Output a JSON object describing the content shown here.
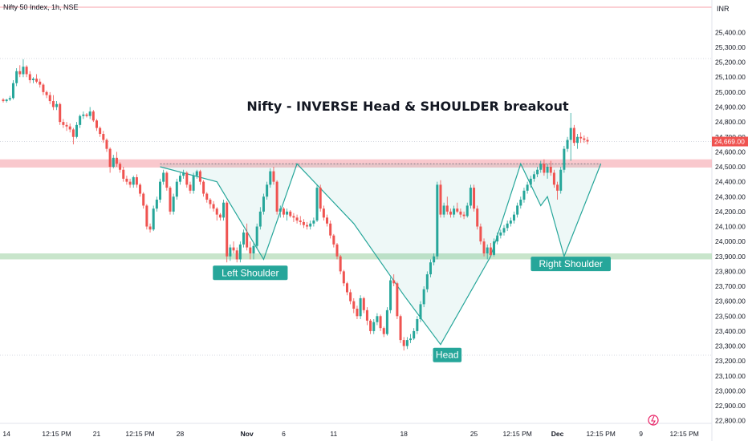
{
  "chart_data": {
    "type": "candlestick",
    "header": "Nifty 50 Index, 1h, NSE",
    "currency": "INR",
    "title": "Nifty - INVERSE Head & SHOULDER breakout",
    "last_price": 24669,
    "last_price_label": "24,669.00",
    "ylim": [
      22750,
      25520
    ],
    "y_ticks": [
      22800,
      22900,
      23000,
      23100,
      23200,
      23300,
      23400,
      23500,
      23600,
      23700,
      23800,
      23900,
      24000,
      24100,
      24200,
      24300,
      24400,
      24500,
      24600,
      24700,
      24800,
      24900,
      25000,
      25100,
      25200,
      25300,
      25400
    ],
    "y_tick_labels": [
      "22,800.00",
      "22,900.00",
      "23,000.00",
      "23,100.00",
      "23,200.00",
      "23,300.00",
      "23,400.00",
      "23,500.00",
      "23,600.00",
      "23,700.00",
      "23,800.00",
      "23,900.00",
      "24,000.00",
      "24,100.00",
      "24,200.00",
      "24,300.00",
      "24,400.00",
      "24,500.00",
      "24,600.00",
      "24,700.00",
      "24,800.00",
      "24,900.00",
      "25,000.00",
      "25,100.00",
      "25,200.00",
      "25,300.00",
      "25,400.00"
    ],
    "x_ticks": [
      {
        "label": "14",
        "bar": 1
      },
      {
        "label": "12:15 PM",
        "bar": 16
      },
      {
        "label": "21",
        "bar": 28
      },
      {
        "label": "12:15 PM",
        "bar": 41
      },
      {
        "label": "28",
        "bar": 53
      },
      {
        "label": "Nov",
        "bar": 73,
        "bold": true
      },
      {
        "label": "6",
        "bar": 84
      },
      {
        "label": "11",
        "bar": 99
      },
      {
        "label": "18",
        "bar": 120
      },
      {
        "label": "25",
        "bar": 141
      },
      {
        "label": "12:15 PM",
        "bar": 154
      },
      {
        "label": "Dec",
        "bar": 166,
        "bold": true
      },
      {
        "label": "12:15 PM",
        "bar": 179
      },
      {
        "label": "9",
        "bar": 191
      },
      {
        "label": "12:15 PM",
        "bar": 204
      }
    ],
    "candles": [
      [
        24950,
        24960,
        24930,
        24940
      ],
      [
        24940,
        24955,
        24930,
        24950
      ],
      [
        24950,
        24975,
        24940,
        24960
      ],
      [
        24960,
        25080,
        24950,
        25060
      ],
      [
        25060,
        25160,
        25040,
        25140
      ],
      [
        25140,
        25180,
        25100,
        25120
      ],
      [
        25120,
        25220,
        25100,
        25170
      ],
      [
        25170,
        25180,
        25100,
        25120
      ],
      [
        25120,
        25140,
        25060,
        25080
      ],
      [
        25080,
        25100,
        25060,
        25090
      ],
      [
        25090,
        25120,
        25060,
        25070
      ],
      [
        25070,
        25090,
        25030,
        25050
      ],
      [
        25050,
        25060,
        24980,
        25000
      ],
      [
        25000,
        25010,
        24960,
        24980
      ],
      [
        24980,
        25000,
        24920,
        24940
      ],
      [
        24940,
        24980,
        24880,
        24900
      ],
      [
        24900,
        24940,
        24880,
        24920
      ],
      [
        24920,
        24930,
        24780,
        24800
      ],
      [
        24800,
        24820,
        24760,
        24780
      ],
      [
        24780,
        24800,
        24740,
        24770
      ],
      [
        24770,
        24790,
        24730,
        24750
      ],
      [
        24750,
        24760,
        24650,
        24700
      ],
      [
        24700,
        24800,
        24690,
        24780
      ],
      [
        24780,
        24850,
        24760,
        24840
      ],
      [
        24840,
        24870,
        24820,
        24850
      ],
      [
        24850,
        24860,
        24830,
        24840
      ],
      [
        24840,
        24900,
        24820,
        24870
      ],
      [
        24870,
        24880,
        24800,
        24810
      ],
      [
        24810,
        24820,
        24740,
        24760
      ],
      [
        24760,
        24770,
        24700,
        24720
      ],
      [
        24720,
        24740,
        24660,
        24680
      ],
      [
        24680,
        24690,
        24600,
        24620
      ],
      [
        24620,
        24630,
        24460,
        24500
      ],
      [
        24500,
        24580,
        24490,
        24560
      ],
      [
        24560,
        24600,
        24500,
        24520
      ],
      [
        24520,
        24530,
        24460,
        24480
      ],
      [
        24480,
        24500,
        24400,
        24420
      ],
      [
        24420,
        24440,
        24380,
        24400
      ],
      [
        24400,
        24420,
        24360,
        24380
      ],
      [
        24380,
        24440,
        24360,
        24430
      ],
      [
        24430,
        24450,
        24360,
        24380
      ],
      [
        24380,
        24390,
        24300,
        24320
      ],
      [
        24320,
        24330,
        24220,
        24240
      ],
      [
        24240,
        24250,
        24080,
        24100
      ],
      [
        24100,
        24120,
        24060,
        24080
      ],
      [
        24080,
        24240,
        24070,
        24220
      ],
      [
        24220,
        24300,
        24200,
        24280
      ],
      [
        24280,
        24420,
        24260,
        24400
      ],
      [
        24400,
        24480,
        24380,
        24460
      ],
      [
        24460,
        24470,
        24340,
        24360
      ],
      [
        24360,
        24370,
        24180,
        24200
      ],
      [
        24200,
        24320,
        24180,
        24300
      ],
      [
        24300,
        24420,
        24280,
        24400
      ],
      [
        24400,
        24460,
        24380,
        24440
      ],
      [
        24440,
        24480,
        24420,
        24460
      ],
      [
        24460,
        24470,
        24360,
        24380
      ],
      [
        24380,
        24400,
        24320,
        24340
      ],
      [
        24340,
        24460,
        24320,
        24440
      ],
      [
        24440,
        24480,
        24420,
        24470
      ],
      [
        24470,
        24480,
        24380,
        24400
      ],
      [
        24400,
        24410,
        24300,
        24320
      ],
      [
        24320,
        24330,
        24260,
        24280
      ],
      [
        24280,
        24290,
        24220,
        24250
      ],
      [
        24250,
        24270,
        24200,
        24220
      ],
      [
        24220,
        24230,
        24140,
        24180
      ],
      [
        24180,
        24190,
        24140,
        24160
      ],
      [
        24160,
        24280,
        24140,
        24260
      ],
      [
        24260,
        24270,
        23860,
        23900
      ],
      [
        23900,
        23980,
        23870,
        23960
      ],
      [
        23960,
        24000,
        23920,
        23940
      ],
      [
        23940,
        23960,
        23860,
        23880
      ],
      [
        23880,
        24000,
        23860,
        23980
      ],
      [
        23980,
        24080,
        23960,
        24060
      ],
      [
        24060,
        24120,
        23940,
        23960
      ],
      [
        23960,
        24000,
        23880,
        23920
      ],
      [
        23920,
        23990,
        23880,
        23970
      ],
      [
        23970,
        24120,
        23950,
        24100
      ],
      [
        24100,
        24230,
        24080,
        24200
      ],
      [
        24200,
        24320,
        24180,
        24300
      ],
      [
        24300,
        24400,
        24280,
        24380
      ],
      [
        24380,
        24490,
        24360,
        24470
      ],
      [
        24470,
        24500,
        24380,
        24400
      ],
      [
        24400,
        24410,
        24180,
        24200
      ],
      [
        24200,
        24240,
        24160,
        24220
      ],
      [
        24220,
        24230,
        24160,
        24180
      ],
      [
        24180,
        24220,
        24140,
        24200
      ],
      [
        24200,
        24210,
        24160,
        24170
      ],
      [
        24170,
        24190,
        24130,
        24160
      ],
      [
        24160,
        24180,
        24120,
        24140
      ],
      [
        24140,
        24170,
        24110,
        24130
      ],
      [
        24130,
        24150,
        24090,
        24110
      ],
      [
        24110,
        24130,
        24080,
        24100
      ],
      [
        24100,
        24140,
        24080,
        24120
      ],
      [
        24120,
        24160,
        24100,
        24140
      ],
      [
        24140,
        24380,
        24130,
        24360
      ],
      [
        24360,
        24380,
        24200,
        24220
      ],
      [
        24220,
        24240,
        24140,
        24160
      ],
      [
        24160,
        24180,
        24100,
        24120
      ],
      [
        24120,
        24140,
        24020,
        24040
      ],
      [
        24040,
        24050,
        23960,
        23980
      ],
      [
        23980,
        23990,
        23880,
        23900
      ],
      [
        23900,
        23910,
        23780,
        23800
      ],
      [
        23800,
        23810,
        23700,
        23720
      ],
      [
        23720,
        23730,
        23640,
        23660
      ],
      [
        23660,
        23680,
        23580,
        23600
      ],
      [
        23600,
        23620,
        23520,
        23550
      ],
      [
        23550,
        23570,
        23480,
        23500
      ],
      [
        23500,
        23640,
        23480,
        23620
      ],
      [
        23620,
        23630,
        23520,
        23540
      ],
      [
        23540,
        23560,
        23440,
        23470
      ],
      [
        23470,
        23480,
        23380,
        23400
      ],
      [
        23400,
        23480,
        23380,
        23460
      ],
      [
        23460,
        23520,
        23440,
        23500
      ],
      [
        23500,
        23510,
        23400,
        23420
      ],
      [
        23420,
        23430,
        23360,
        23380
      ],
      [
        23380,
        23560,
        23370,
        23540
      ],
      [
        23540,
        23760,
        23520,
        23740
      ],
      [
        23740,
        23780,
        23700,
        23720
      ],
      [
        23720,
        23730,
        23480,
        23500
      ],
      [
        23500,
        23510,
        23320,
        23340
      ],
      [
        23340,
        23360,
        23270,
        23300
      ],
      [
        23300,
        23360,
        23280,
        23340
      ],
      [
        23340,
        23380,
        23320,
        23350
      ],
      [
        23350,
        23420,
        23340,
        23400
      ],
      [
        23400,
        23500,
        23380,
        23480
      ],
      [
        23480,
        23600,
        23460,
        23580
      ],
      [
        23580,
        23700,
        23560,
        23680
      ],
      [
        23680,
        23800,
        23660,
        23780
      ],
      [
        23780,
        23880,
        23760,
        23860
      ],
      [
        23860,
        23920,
        23840,
        23900
      ],
      [
        23900,
        24400,
        23880,
        24380
      ],
      [
        24380,
        24410,
        24160,
        24180
      ],
      [
        24180,
        24260,
        24160,
        24240
      ],
      [
        24240,
        24300,
        24180,
        24200
      ],
      [
        24200,
        24220,
        24160,
        24180
      ],
      [
        24180,
        24240,
        24160,
        24220
      ],
      [
        24220,
        24260,
        24190,
        24200
      ],
      [
        24200,
        24220,
        24160,
        24180
      ],
      [
        24180,
        24200,
        24150,
        24170
      ],
      [
        24170,
        24260,
        24160,
        24240
      ],
      [
        24240,
        24380,
        24220,
        24360
      ],
      [
        24360,
        24380,
        24200,
        24220
      ],
      [
        24220,
        24240,
        24080,
        24100
      ],
      [
        24100,
        24120,
        23980,
        24000
      ],
      [
        24000,
        24020,
        23900,
        23920
      ],
      [
        23920,
        23980,
        23880,
        23960
      ],
      [
        23960,
        23990,
        23900,
        23910
      ],
      [
        23910,
        24020,
        23900,
        24000
      ],
      [
        24000,
        24060,
        23980,
        24040
      ],
      [
        24040,
        24080,
        24020,
        24060
      ],
      [
        24060,
        24110,
        24040,
        24090
      ],
      [
        24090,
        24140,
        24070,
        24120
      ],
      [
        24120,
        24160,
        24100,
        24140
      ],
      [
        24140,
        24200,
        24120,
        24180
      ],
      [
        24180,
        24260,
        24160,
        24240
      ],
      [
        24240,
        24300,
        24220,
        24280
      ],
      [
        24280,
        24360,
        24260,
        24340
      ],
      [
        24340,
        24400,
        24320,
        24380
      ],
      [
        24380,
        24440,
        24360,
        24420
      ],
      [
        24420,
        24470,
        24400,
        24450
      ],
      [
        24450,
        24500,
        24430,
        24480
      ],
      [
        24480,
        24540,
        24460,
        24520
      ],
      [
        24520,
        24550,
        24440,
        24460
      ],
      [
        24460,
        24520,
        24420,
        24500
      ],
      [
        24500,
        24540,
        24440,
        24460
      ],
      [
        24460,
        24480,
        24360,
        24380
      ],
      [
        24380,
        24400,
        24280,
        24340
      ],
      [
        24340,
        24500,
        24320,
        24480
      ],
      [
        24480,
        24640,
        24460,
        24620
      ],
      [
        24620,
        24700,
        24600,
        24680
      ],
      [
        24680,
        24860,
        24540,
        24760
      ],
      [
        24760,
        24780,
        24640,
        24660
      ],
      [
        24660,
        24720,
        24620,
        24700
      ],
      [
        24700,
        24730,
        24660,
        24690
      ],
      [
        24690,
        24710,
        24660,
        24680
      ],
      [
        24680,
        24700,
        24650,
        24669
      ]
    ],
    "zones": [
      {
        "name": "resistance",
        "from": 24495,
        "to": 24550,
        "color": "#f7b6bc"
      },
      {
        "name": "support",
        "from": 23880,
        "to": 23920,
        "color": "#b5dcb9"
      }
    ],
    "pattern_path": [
      [
        47,
        24500
      ],
      [
        64,
        24400
      ],
      [
        78,
        23880
      ],
      [
        88,
        24520
      ],
      [
        105,
        24120
      ],
      [
        120,
        23640
      ],
      [
        131,
        23310
      ],
      [
        146,
        23900
      ],
      [
        155,
        24520
      ],
      [
        161,
        24240
      ],
      [
        163,
        24300
      ],
      [
        168,
        23900
      ],
      [
        179,
        24520
      ]
    ],
    "pattern_fill_top": 24520,
    "labels": [
      {
        "text": "Left Shoulder",
        "bar": 74,
        "price": 23790
      },
      {
        "text": "Head",
        "bar": 133,
        "price": 23240
      },
      {
        "text": "Right Shoulder",
        "bar": 170,
        "price": 23850
      }
    ],
    "up_color": "#26a69a",
    "down_color": "#ef5350",
    "pattern_color": "#26a69a",
    "label_bg": "#26a69a",
    "price_label_bg": "#ef5350"
  }
}
